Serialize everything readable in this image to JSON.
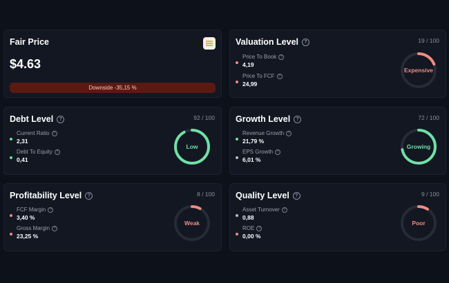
{
  "fair_price": {
    "title": "Fair Price",
    "price": "$4.63",
    "downside": "Downside -35,15 %",
    "icon": "coin-stack-icon"
  },
  "cards": {
    "valuation": {
      "title": "Valuation Level",
      "score": "19 / 100",
      "gauge": {
        "label": "Expensive",
        "fraction": 0.19,
        "color": "#ef8c82"
      },
      "metrics": [
        {
          "label": "Price To Book",
          "value": "4,19",
          "dot": "#ef8c82"
        },
        {
          "label": "Price To FCF",
          "value": "24,99",
          "dot": "#ef8c82"
        }
      ]
    },
    "debt": {
      "title": "Debt Level",
      "score": "92 / 100",
      "gauge": {
        "label": "Low",
        "fraction": 0.92,
        "color": "#6fe0a5"
      },
      "metrics": [
        {
          "label": "Current Ratio",
          "value": "2,31",
          "dot": "#6fe0a5"
        },
        {
          "label": "Debt To Equity",
          "value": "0,41",
          "dot": "#6fe0a5"
        }
      ]
    },
    "growth": {
      "title": "Growth Level",
      "score": "72 / 100",
      "gauge": {
        "label": "Growing",
        "fraction": 0.72,
        "color": "#6fe0a5"
      },
      "metrics": [
        {
          "label": "Revenue Growth",
          "value": "21,79 %",
          "dot": "#6fe0a5"
        },
        {
          "label": "EPS Growth",
          "value": "6,01 %",
          "dot": "#b8bcc6"
        }
      ]
    },
    "profitability": {
      "title": "Profitability Level",
      "score": "8 / 100",
      "gauge": {
        "label": "Weak",
        "fraction": 0.08,
        "color": "#ef8c82"
      },
      "metrics": [
        {
          "label": "FCF Margin",
          "value": "3,40 %",
          "dot": "#ef8c82"
        },
        {
          "label": "Gross Margin",
          "value": "23,25 %",
          "dot": "#ef8c82"
        }
      ]
    },
    "quality": {
      "title": "Quality Level",
      "score": "9 / 100",
      "gauge": {
        "label": "Poor",
        "fraction": 0.09,
        "color": "#ef8c82"
      },
      "metrics": [
        {
          "label": "Asset Turnover",
          "value": "0,88",
          "dot": "#b8bcc6"
        },
        {
          "label": "ROE",
          "value": "0,00 %",
          "dot": "#ef8c82"
        }
      ]
    }
  }
}
